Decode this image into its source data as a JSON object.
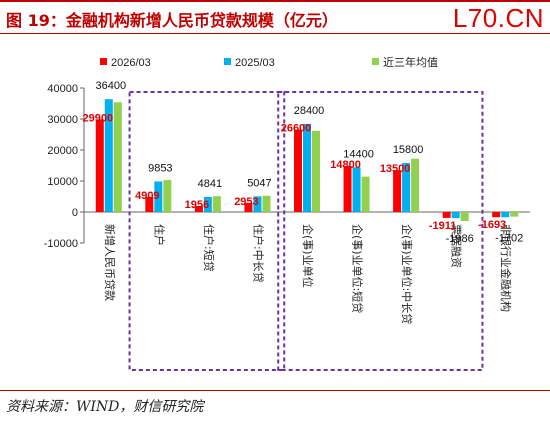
{
  "header": {
    "title": "图 19：金融机构新增人民币贷款规模（亿元）",
    "watermark": "L70.CN"
  },
  "footer": {
    "source": "资料来源：WIND，财信研究院"
  },
  "colors": {
    "s1": "#ff0000",
    "s2": "#00b0f0",
    "s3": "#92d050",
    "frame": "#7030a0",
    "label_red": "#e00000"
  },
  "chart_data": {
    "type": "bar",
    "title": "金融机构新增人民币贷款规模（亿元）",
    "categories": [
      "新增人民币贷款",
      "住户",
      "住户:短贷",
      "住户:中长贷",
      "企(事)业单位",
      "企(事)业单位:短贷",
      "企(事)业单位:中长贷",
      "票据融资",
      "非银行业金融机构"
    ],
    "series": [
      {
        "name": "2026/03",
        "values": [
          29900,
          4909,
          1956,
          2953,
          26600,
          14800,
          13500,
          -1911,
          -1693
        ]
      },
      {
        "name": "2025/03",
        "values": [
          36400,
          9853,
          4841,
          5047,
          28400,
          14400,
          15800,
          -1986,
          -1702
        ]
      },
      {
        "name": "近三年均值",
        "values": [
          35400,
          10300,
          5100,
          5250,
          26200,
          11400,
          17200,
          -2900,
          -1500
        ]
      }
    ],
    "data_labels": [
      {
        "category": 0,
        "series": 0,
        "text": "29900",
        "color": "red"
      },
      {
        "category": 0,
        "series": 1,
        "text": "36400",
        "color": "black"
      },
      {
        "category": 1,
        "series": 0,
        "text": "4909",
        "color": "red"
      },
      {
        "category": 1,
        "series": 1,
        "text": "9853",
        "color": "black"
      },
      {
        "category": 2,
        "series": 0,
        "text": "1956",
        "color": "red"
      },
      {
        "category": 2,
        "series": 1,
        "text": "4841",
        "color": "black"
      },
      {
        "category": 3,
        "series": 0,
        "text": "2953",
        "color": "red"
      },
      {
        "category": 3,
        "series": 1,
        "text": "5047",
        "color": "black"
      },
      {
        "category": 4,
        "series": 0,
        "text": "26600",
        "color": "red"
      },
      {
        "category": 4,
        "series": 1,
        "text": "28400",
        "color": "black"
      },
      {
        "category": 5,
        "series": 0,
        "text": "14800",
        "color": "red"
      },
      {
        "category": 5,
        "series": 1,
        "text": "14400",
        "color": "black"
      },
      {
        "category": 6,
        "series": 0,
        "text": "13500",
        "color": "red"
      },
      {
        "category": 6,
        "series": 1,
        "text": "15800",
        "color": "black"
      },
      {
        "category": 7,
        "series": 0,
        "text": "-1911",
        "color": "red"
      },
      {
        "category": 7,
        "series": 1,
        "text": "-1986",
        "color": "black"
      },
      {
        "category": 8,
        "series": 0,
        "text": "-1693",
        "color": "red"
      },
      {
        "category": 8,
        "series": 1,
        "text": "-1702",
        "color": "black"
      }
    ],
    "ylim": [
      -10000,
      40000
    ],
    "yticks": [
      -10000,
      0,
      10000,
      20000,
      30000,
      40000
    ],
    "grid": false,
    "legend": "top"
  }
}
